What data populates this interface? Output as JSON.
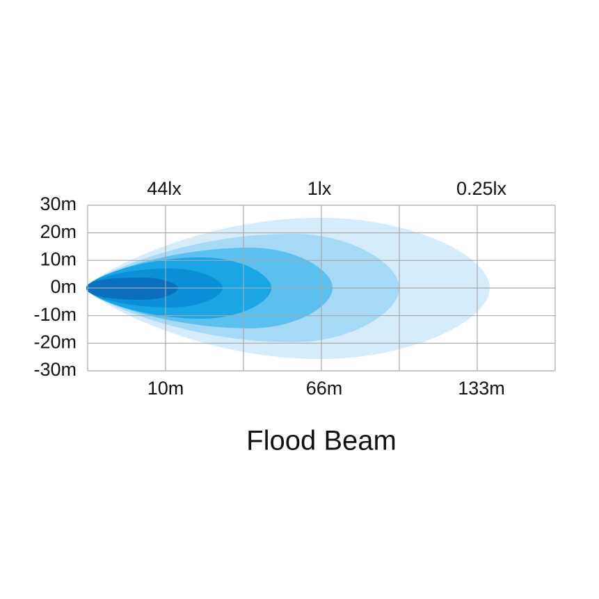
{
  "title": "Flood Beam",
  "y_labels": [
    "30m",
    "20m",
    "10m",
    "0m",
    "-10m",
    "-20m",
    "-30m"
  ],
  "lux_labels": [
    "44lx",
    "1lx",
    "0.25lx"
  ],
  "distance_labels": [
    "10m",
    "66m",
    "133m"
  ]
}
